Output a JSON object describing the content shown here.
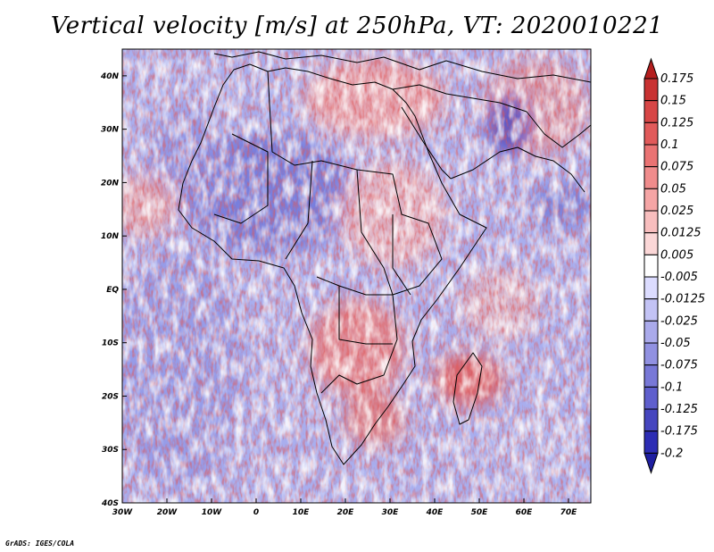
{
  "title": "Vertical velocity [m/s] at 250hPa, VT: 2020010221",
  "credit": "GrADS: IGES/COLA",
  "map": {
    "lon_range": [
      -30,
      75
    ],
    "lat_range": [
      -40,
      45
    ],
    "x_ticks": [
      "30W",
      "20W",
      "10W",
      "0",
      "10E",
      "20E",
      "30E",
      "40E",
      "50E",
      "60E",
      "70E"
    ],
    "y_ticks": [
      "40N",
      "30N",
      "20N",
      "10N",
      "EQ",
      "10S",
      "20S",
      "30S",
      "40S"
    ]
  },
  "colorbar": {
    "levels": [
      "0.175",
      "0.15",
      "0.125",
      "0.1",
      "0.075",
      "0.05",
      "0.025",
      "0.0125",
      "0.005",
      "-0.005",
      "-0.0125",
      "-0.025",
      "-0.05",
      "-0.075",
      "-0.1",
      "-0.125",
      "-0.175",
      "-0.2"
    ],
    "colors": [
      "#b41e1e",
      "#c83232",
      "#d74646",
      "#e15a5a",
      "#ea7373",
      "#f08c8c",
      "#f5a5a5",
      "#f8bebe",
      "#fbd7d7",
      "#ffffff",
      "#dcdcff",
      "#c3c3f5",
      "#aaaaeb",
      "#9191e1",
      "#7878d7",
      "#5f5fcd",
      "#4646bf",
      "#2d2db4",
      "#1e1ea0"
    ]
  }
}
